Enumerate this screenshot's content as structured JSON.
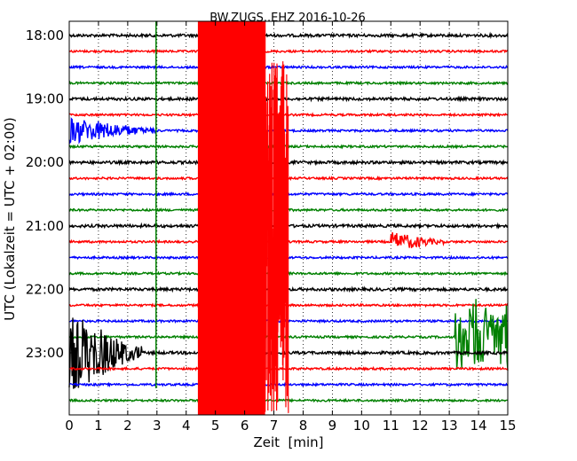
{
  "chart_data": {
    "type": "line",
    "title": "BW.ZUGS..EHZ 2016-10-26",
    "xlabel": "Zeit  [min]",
    "ylabel": "UTC (Lokalzeit = UTC + 02:00)",
    "xlim": [
      0,
      15
    ],
    "x_ticks": [
      "0",
      "1",
      "2",
      "3",
      "4",
      "5",
      "6",
      "7",
      "8",
      "9",
      "10",
      "11",
      "12",
      "13",
      "14",
      "15"
    ],
    "y_ticks": [
      "18:00",
      "19:00",
      "20:00",
      "21:00",
      "22:00",
      "23:00"
    ],
    "grid": "vertical dotted",
    "trace_colors": [
      "#000000",
      "#ff0000",
      "#0000ff",
      "#008000"
    ],
    "traces_per_hour": 4,
    "minutes_per_trace": 15,
    "start_hour": 18,
    "trace_count": 24,
    "events": [
      {
        "trace": 0,
        "from": 4.4,
        "to": 7.5,
        "amp": 60,
        "color": "#ff0000",
        "note": "saturated red block across all traces"
      },
      {
        "trace": 6,
        "from": 0.0,
        "to": 3.0,
        "amp": 14
      },
      {
        "trace": 20,
        "from": 0.0,
        "to": 2.5,
        "amp": 45
      },
      {
        "trace": 19,
        "from": 13.2,
        "to": 15.0,
        "amp": 50
      },
      {
        "trace": 13,
        "from": 11.0,
        "to": 12.8,
        "amp": 10
      }
    ]
  }
}
